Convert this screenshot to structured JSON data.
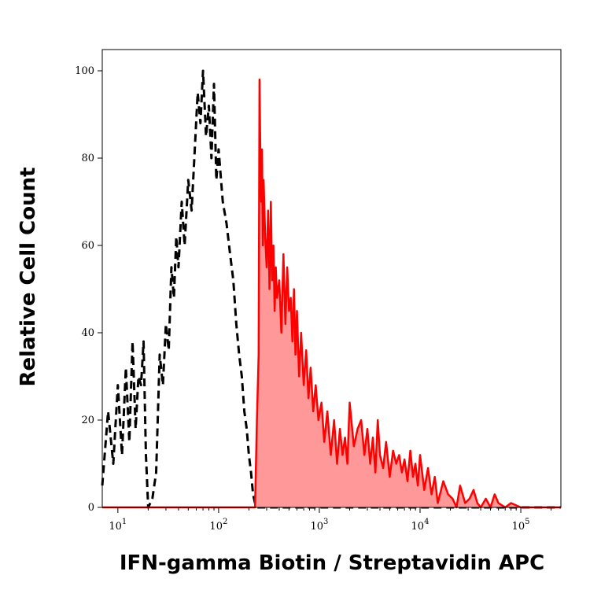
{
  "chart_data": {
    "type": "area",
    "title": "",
    "xlabel": "IFN-gamma Biotin / Streptavidin APC",
    "ylabel": "Relative Cell Count",
    "x_scale": "log",
    "xlim": [
      7,
      250000
    ],
    "ylim": [
      0,
      105
    ],
    "grid": false,
    "x_ticks": [
      {
        "value": 10,
        "base": "10",
        "exp": "1"
      },
      {
        "value": 100,
        "base": "10",
        "exp": "2"
      },
      {
        "value": 1000,
        "base": "10",
        "exp": "3"
      },
      {
        "value": 10000,
        "base": "10",
        "exp": "4"
      },
      {
        "value": 100000,
        "base": "10",
        "exp": "5"
      }
    ],
    "y_ticks": [
      "0",
      "20",
      "40",
      "60",
      "80",
      "100"
    ],
    "series": [
      {
        "style": "dashed",
        "color": "#000000",
        "fill": "none",
        "x": [
          7,
          8,
          9,
          10,
          11,
          12,
          13,
          14,
          15,
          16,
          17,
          18,
          19,
          20,
          22,
          24,
          26,
          28,
          30,
          32,
          34,
          36,
          38,
          40,
          43,
          46,
          50,
          54,
          58,
          62,
          66,
          70,
          75,
          80,
          85,
          90,
          95,
          100,
          110,
          120,
          130,
          140,
          150,
          160,
          170,
          180,
          190,
          200,
          210,
          220,
          230,
          240,
          250,
          300,
          500,
          1000,
          3000,
          10000,
          50000,
          250000
        ],
        "values": [
          5,
          22,
          10,
          28,
          12,
          32,
          15,
          38,
          18,
          30,
          28,
          38,
          12,
          0,
          2,
          8,
          35,
          28,
          42,
          36,
          55,
          48,
          62,
          55,
          70,
          60,
          75,
          68,
          82,
          95,
          88,
          100,
          85,
          92,
          80,
          97,
          75,
          82,
          70,
          65,
          58,
          52,
          42,
          35,
          30,
          22,
          18,
          12,
          8,
          3,
          1,
          0,
          0,
          0,
          0,
          0,
          0,
          0,
          0,
          0
        ]
      },
      {
        "style": "solid",
        "color": "#ff0000",
        "fill": "#ff9999",
        "x": [
          7,
          100,
          200,
          230,
          240,
          250,
          255,
          260,
          265,
          270,
          275,
          280,
          290,
          300,
          310,
          320,
          330,
          340,
          350,
          360,
          370,
          380,
          400,
          420,
          440,
          460,
          480,
          500,
          520,
          540,
          560,
          580,
          600,
          630,
          660,
          700,
          740,
          780,
          820,
          870,
          920,
          980,
          1050,
          1120,
          1200,
          1300,
          1400,
          1500,
          1600,
          1700,
          1800,
          1900,
          2000,
          2200,
          2400,
          2600,
          2800,
          3000,
          3200,
          3400,
          3600,
          3800,
          4000,
          4300,
          4600,
          5000,
          5400,
          5800,
          6200,
          6600,
          7000,
          7500,
          8000,
          8500,
          9000,
          9500,
          10000,
          11000,
          12000,
          13000,
          14000,
          15000,
          17000,
          19000,
          21000,
          23000,
          25000,
          28000,
          31000,
          34000,
          37000,
          40000,
          45000,
          50000,
          55000,
          60000,
          70000,
          80000,
          100000,
          150000,
          250000
        ],
        "values": [
          0,
          0,
          0,
          0,
          20,
          35,
          98,
          80,
          70,
          82,
          60,
          75,
          62,
          55,
          68,
          50,
          70,
          52,
          60,
          45,
          55,
          48,
          52,
          40,
          58,
          42,
          55,
          45,
          48,
          38,
          50,
          35,
          45,
          30,
          40,
          28,
          36,
          25,
          32,
          22,
          28,
          20,
          24,
          15,
          22,
          12,
          20,
          10,
          18,
          12,
          16,
          10,
          24,
          14,
          18,
          20,
          12,
          18,
          10,
          16,
          8,
          20,
          12,
          9,
          15,
          7,
          13,
          10,
          12,
          8,
          11,
          6,
          13,
          7,
          10,
          5,
          12,
          4,
          9,
          3,
          7,
          1,
          6,
          3,
          2,
          0,
          5,
          1,
          2,
          4,
          1,
          0,
          2,
          0,
          3,
          1,
          0,
          1,
          0,
          0,
          0
        ]
      }
    ]
  }
}
